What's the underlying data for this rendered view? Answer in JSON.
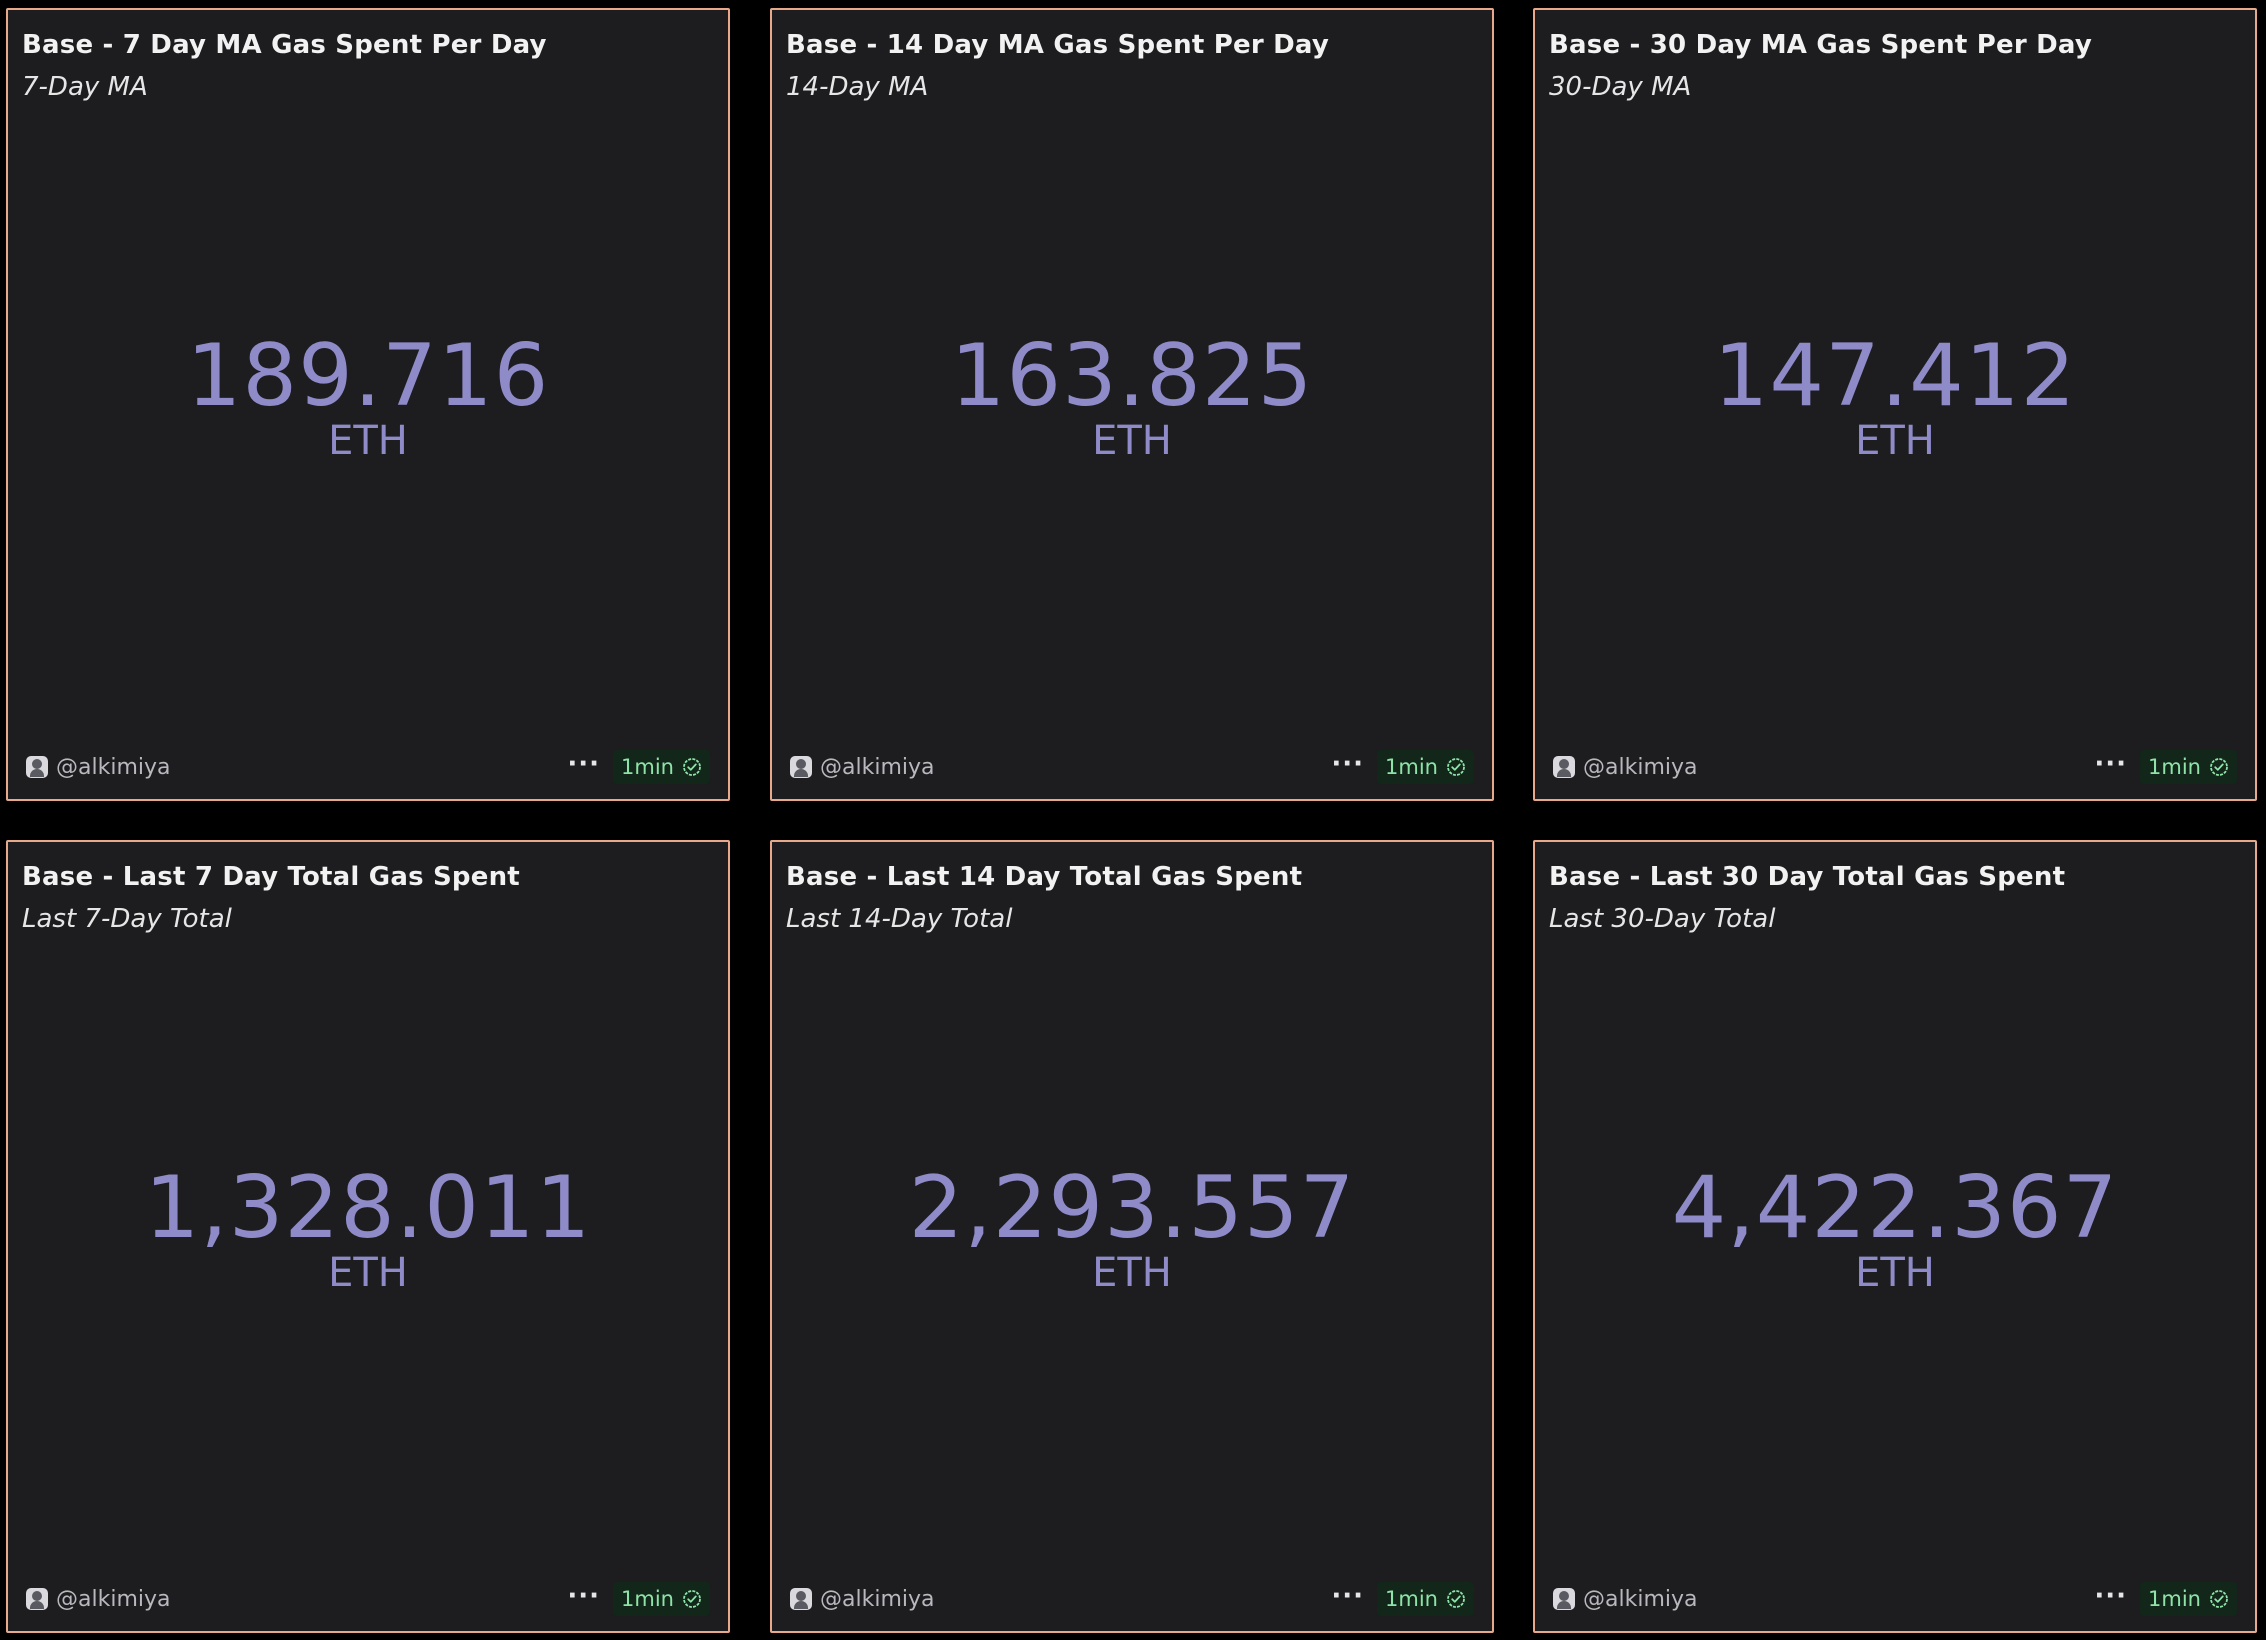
{
  "cards": [
    {
      "title": "Base - 7 Day MA Gas Spent Per Day",
      "subtitle": "7-Day MA",
      "value": "189.716",
      "unit": "ETH",
      "author": "@alkimiya",
      "more_label": "···",
      "refresh_label": "1min"
    },
    {
      "title": "Base - 14 Day MA Gas Spent Per Day",
      "subtitle": "14-Day MA",
      "value": "163.825",
      "unit": "ETH",
      "author": "@alkimiya",
      "more_label": "···",
      "refresh_label": "1min"
    },
    {
      "title": "Base - 30 Day MA Gas Spent Per Day",
      "subtitle": "30-Day MA",
      "value": "147.412",
      "unit": "ETH",
      "author": "@alkimiya",
      "more_label": "···",
      "refresh_label": "1min"
    },
    {
      "title": "Base - Last 7 Day Total Gas Spent",
      "subtitle": "Last 7-Day Total",
      "value": "1,328.011",
      "unit": "ETH",
      "author": "@alkimiya",
      "more_label": "···",
      "refresh_label": "1min"
    },
    {
      "title": "Base - Last 14 Day Total Gas Spent",
      "subtitle": "Last 14-Day Total",
      "value": "2,293.557",
      "unit": "ETH",
      "author": "@alkimiya",
      "more_label": "···",
      "refresh_label": "1min"
    },
    {
      "title": "Base - Last 30 Day Total Gas Spent",
      "subtitle": "Last 30-Day Total",
      "value": "4,422.367",
      "unit": "ETH",
      "author": "@alkimiya",
      "more_label": "···",
      "refresh_label": "1min"
    }
  ],
  "colors": {
    "background": "#000000",
    "card_background": "#1d1d20",
    "card_border": "#e8a98a",
    "value": "#8f8bc9",
    "badge_text": "#8fe3a8",
    "badge_background": "#12261a"
  },
  "icons": {
    "avatar": "avatar-icon",
    "more": "more-options-icon",
    "status": "check-circle-icon"
  }
}
